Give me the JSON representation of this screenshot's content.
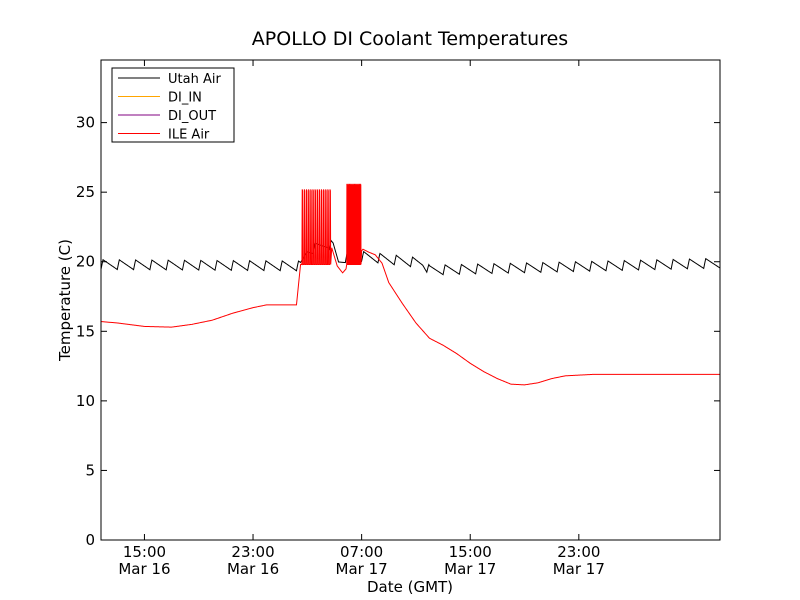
{
  "chart_data": {
    "type": "line",
    "title": "APOLLO DI Coolant Temperatures",
    "xlabel": "Date (GMT)",
    "ylabel": "Temperature (C)",
    "ylim": [
      0,
      34.5
    ],
    "xlim_hours": [
      11.8,
      57.4
    ],
    "yticks": [
      0,
      5,
      10,
      15,
      20,
      25,
      30
    ],
    "xticks": [
      {
        "hour": 15,
        "time": "15:00",
        "date": "Mar 16"
      },
      {
        "hour": 23,
        "time": "23:00",
        "date": "Mar 16"
      },
      {
        "hour": 31,
        "time": "07:00",
        "date": "Mar 17"
      },
      {
        "hour": 39,
        "time": "15:00",
        "date": "Mar 17"
      },
      {
        "hour": 47,
        "time": "23:00",
        "date": "Mar 17"
      }
    ],
    "legend_position": "top-left",
    "grid": false,
    "series": [
      {
        "name": "Utah Air",
        "color": "#000000",
        "kind": "sawtooth",
        "base": 19.7,
        "amplitude": 0.7,
        "period_hours": 1.2,
        "x": [
          11.8,
          26.5,
          27.0,
          28.5,
          28.9,
          29.3,
          30.5,
          31.0,
          35.5,
          36.0,
          57.4
        ],
        "y": [
          19.8,
          19.7,
          20.8,
          21.3,
          21.1,
          20.0,
          20.7,
          20.4,
          19.9,
          19.4,
          19.9
        ]
      },
      {
        "name": "DI_IN",
        "color": "#ffa500",
        "kind": "none",
        "x": [],
        "y": []
      },
      {
        "name": "DI_OUT",
        "color": "#800080",
        "kind": "none",
        "x": [],
        "y": []
      },
      {
        "name": "ILE Air",
        "color": "#ff0000",
        "kind": "line",
        "x": [
          11.8,
          13.0,
          15.0,
          17.0,
          18.5,
          20.0,
          21.5,
          23.0,
          24.0,
          26.2,
          26.5,
          28.8,
          29.2,
          29.6,
          31.1,
          31.5,
          32.0,
          32.5,
          33.0,
          34.0,
          35.0,
          36.0,
          37.0,
          38.0,
          39.0,
          40.0,
          41.0,
          42.0,
          43.0,
          44.0,
          45.0,
          46.0,
          47.0,
          48.0,
          57.4
        ],
        "y": [
          15.7,
          15.6,
          15.35,
          15.3,
          15.5,
          15.8,
          16.3,
          16.7,
          16.9,
          16.9,
          19.8,
          21.0,
          19.7,
          19.2,
          20.9,
          20.7,
          20.5,
          19.9,
          18.5,
          17.0,
          15.6,
          14.5,
          14.0,
          13.4,
          12.7,
          12.1,
          11.6,
          11.2,
          11.15,
          11.3,
          11.6,
          11.8,
          11.85,
          11.9,
          11.9
        ],
        "spike_regions": [
          {
            "start": 26.6,
            "end": 28.8,
            "low": 19.8,
            "high": 25.2,
            "count": 14
          },
          {
            "start": 29.9,
            "end": 31.0,
            "low": 19.8,
            "high": 25.6,
            "count": 12
          }
        ]
      }
    ]
  }
}
